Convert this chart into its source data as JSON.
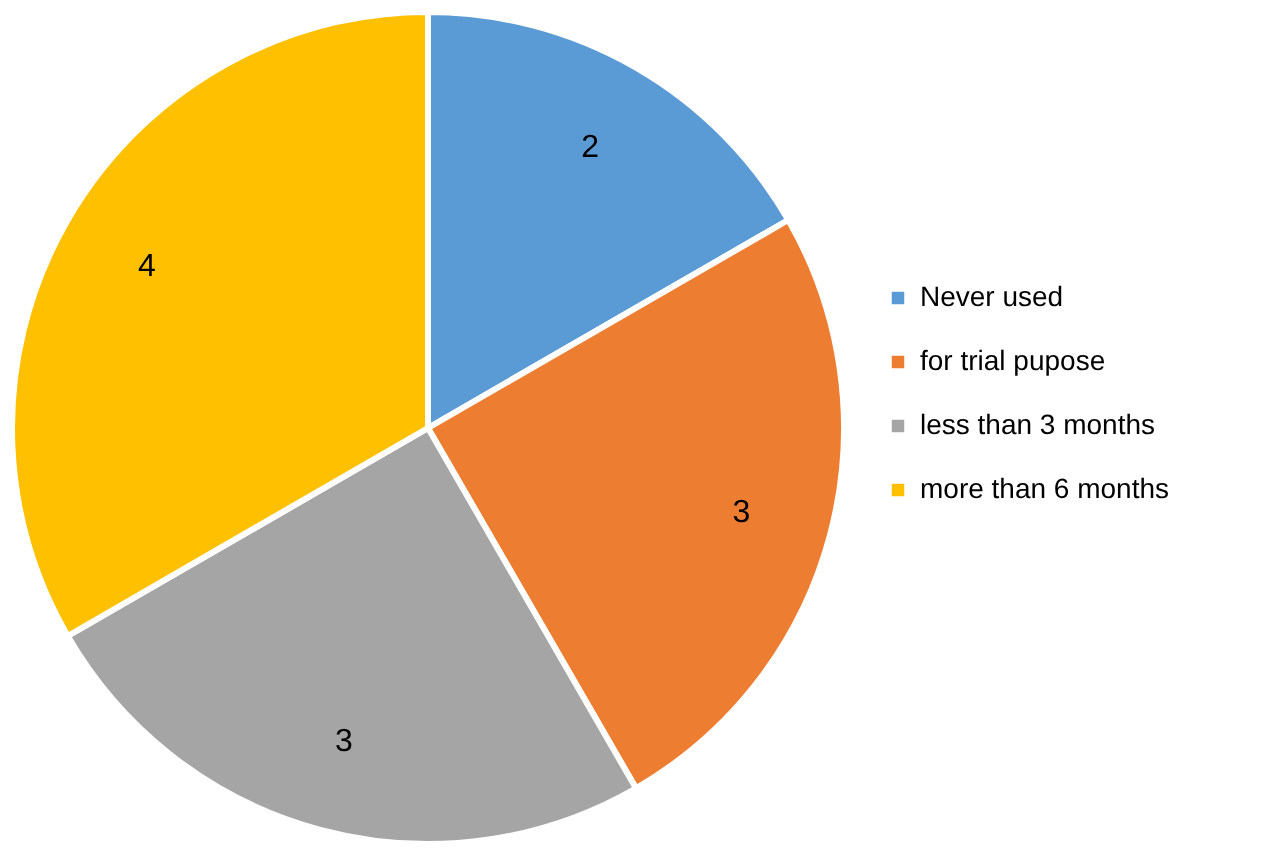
{
  "chart_data": {
    "type": "pie",
    "categories": [
      "Never used",
      "for trial pupose",
      "less than 3 months",
      "more than 6 months"
    ],
    "values": [
      2,
      3,
      3,
      4
    ],
    "colors": [
      "#5b9bd5",
      "#ed7d31",
      "#a5a5a5",
      "#ffc000"
    ],
    "data_labels": true,
    "legend": "right"
  }
}
